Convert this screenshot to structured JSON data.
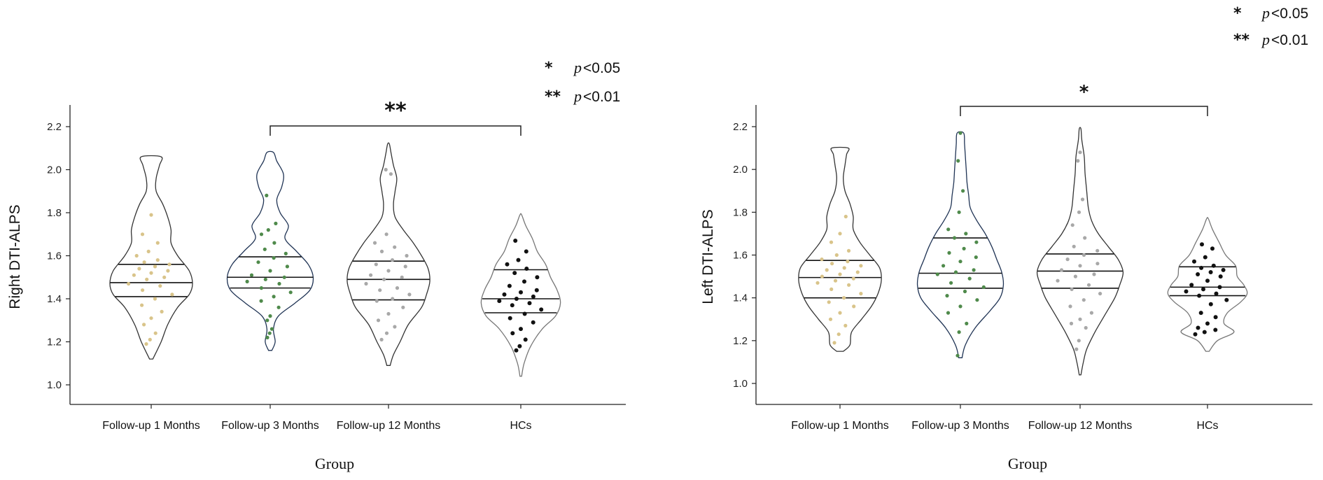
{
  "legend": {
    "entries": [
      {
        "stars": "*",
        "p": "p",
        "text": "<0.05"
      },
      {
        "stars": "**",
        "p": "p",
        "text": "<0.01"
      }
    ]
  },
  "colors": {
    "follow1": "#d9c48a",
    "follow3": "#4f8a4b",
    "follow12": "#a8a8a8",
    "hcs": "#111111",
    "outline": "#333333"
  },
  "chart_data": [
    {
      "type": "violin",
      "xlabel": "Group",
      "ylabel": "Right DTI-ALPS",
      "ylim": [
        0.95,
        2.3
      ],
      "yticks": [
        "1.0",
        "1.2",
        "1.4",
        "1.6",
        "1.8",
        "2.0",
        "2.2"
      ],
      "categories": [
        "Follow-up 1 Months",
        "Follow-up 3 Months",
        "Follow-up 12 Months",
        "HCs"
      ],
      "significance": {
        "from": 1,
        "to": 3,
        "label": "**"
      },
      "series": [
        {
          "quartiles": [
            1.41,
            1.475,
            1.56
          ],
          "min": 1.12,
          "max": 2.06,
          "profile": [
            [
              1.12,
              0.02
            ],
            [
              1.2,
              0.12
            ],
            [
              1.28,
              0.2
            ],
            [
              1.36,
              0.32
            ],
            [
              1.42,
              0.46
            ],
            [
              1.47,
              0.5
            ],
            [
              1.53,
              0.46
            ],
            [
              1.6,
              0.32
            ],
            [
              1.66,
              0.24
            ],
            [
              1.72,
              0.24
            ],
            [
              1.78,
              0.2
            ],
            [
              1.84,
              0.14
            ],
            [
              1.9,
              0.06
            ],
            [
              1.96,
              0.06
            ],
            [
              2.02,
              0.1
            ],
            [
              2.06,
              0.12
            ]
          ],
          "points": [
            1.19,
            1.21,
            1.24,
            1.28,
            1.31,
            1.34,
            1.37,
            1.4,
            1.42,
            1.44,
            1.46,
            1.47,
            1.49,
            1.5,
            1.51,
            1.52,
            1.53,
            1.54,
            1.55,
            1.56,
            1.57,
            1.58,
            1.6,
            1.62,
            1.66,
            1.7,
            1.79
          ]
        },
        {
          "quartiles": [
            1.45,
            1.5,
            1.595
          ],
          "min": 1.16,
          "max": 2.08,
          "profile": [
            [
              1.16,
              0.02
            ],
            [
              1.2,
              0.06
            ],
            [
              1.26,
              0.04
            ],
            [
              1.32,
              0.1
            ],
            [
              1.38,
              0.3
            ],
            [
              1.44,
              0.48
            ],
            [
              1.5,
              0.52
            ],
            [
              1.56,
              0.46
            ],
            [
              1.62,
              0.32
            ],
            [
              1.68,
              0.18
            ],
            [
              1.74,
              0.22
            ],
            [
              1.8,
              0.12
            ],
            [
              1.86,
              0.08
            ],
            [
              1.92,
              0.14
            ],
            [
              1.98,
              0.16
            ],
            [
              2.04,
              0.08
            ],
            [
              2.08,
              0.04
            ]
          ],
          "points": [
            1.22,
            1.24,
            1.26,
            1.3,
            1.32,
            1.36,
            1.39,
            1.41,
            1.43,
            1.45,
            1.47,
            1.48,
            1.49,
            1.5,
            1.51,
            1.53,
            1.55,
            1.57,
            1.59,
            1.61,
            1.63,
            1.66,
            1.7,
            1.72,
            1.75,
            1.88
          ]
        },
        {
          "quartiles": [
            1.395,
            1.49,
            1.575
          ],
          "min": 1.09,
          "max": 2.12,
          "profile": [
            [
              1.09,
              0.02
            ],
            [
              1.14,
              0.06
            ],
            [
              1.2,
              0.14
            ],
            [
              1.28,
              0.24
            ],
            [
              1.36,
              0.4
            ],
            [
              1.42,
              0.46
            ],
            [
              1.48,
              0.5
            ],
            [
              1.54,
              0.48
            ],
            [
              1.6,
              0.4
            ],
            [
              1.66,
              0.3
            ],
            [
              1.72,
              0.18
            ],
            [
              1.78,
              0.08
            ],
            [
              1.84,
              0.06
            ],
            [
              1.9,
              0.08
            ],
            [
              1.96,
              0.1
            ],
            [
              2.02,
              0.06
            ],
            [
              2.08,
              0.03
            ],
            [
              2.12,
              0.01
            ]
          ],
          "points": [
            1.21,
            1.24,
            1.27,
            1.3,
            1.33,
            1.36,
            1.39,
            1.4,
            1.42,
            1.44,
            1.45,
            1.47,
            1.49,
            1.5,
            1.51,
            1.53,
            1.55,
            1.56,
            1.58,
            1.6,
            1.62,
            1.64,
            1.66,
            1.7,
            1.98,
            2.0
          ]
        },
        {
          "quartiles": [
            1.335,
            1.4,
            1.535
          ],
          "min": 1.04,
          "max": 1.79,
          "profile": [
            [
              1.04,
              0.01
            ],
            [
              1.1,
              0.04
            ],
            [
              1.18,
              0.12
            ],
            [
              1.26,
              0.26
            ],
            [
              1.32,
              0.42
            ],
            [
              1.38,
              0.48
            ],
            [
              1.44,
              0.44
            ],
            [
              1.5,
              0.36
            ],
            [
              1.56,
              0.3
            ],
            [
              1.62,
              0.2
            ],
            [
              1.68,
              0.14
            ],
            [
              1.74,
              0.06
            ],
            [
              1.79,
              0.01
            ]
          ],
          "points": [
            1.16,
            1.18,
            1.21,
            1.24,
            1.26,
            1.29,
            1.31,
            1.33,
            1.35,
            1.37,
            1.38,
            1.39,
            1.4,
            1.41,
            1.42,
            1.43,
            1.44,
            1.46,
            1.48,
            1.5,
            1.52,
            1.54,
            1.56,
            1.58,
            1.62,
            1.67
          ]
        }
      ]
    },
    {
      "type": "violin",
      "xlabel": "Group",
      "ylabel": "Left DTI-ALPS",
      "ylim": [
        0.95,
        2.3
      ],
      "yticks": [
        "1.0",
        "1.2",
        "1.4",
        "1.6",
        "1.8",
        "2.0",
        "2.2"
      ],
      "categories": [
        "Follow-up 1 Months",
        "Follow-up 3 Months",
        "Follow-up 12 Months",
        "HCs"
      ],
      "significance": {
        "from": 1,
        "to": 3,
        "label": "*"
      },
      "series": [
        {
          "quartiles": [
            1.4,
            1.495,
            1.575
          ],
          "min": 1.15,
          "max": 2.1,
          "profile": [
            [
              1.15,
              0.04
            ],
            [
              1.18,
              0.12
            ],
            [
              1.24,
              0.14
            ],
            [
              1.3,
              0.26
            ],
            [
              1.36,
              0.38
            ],
            [
              1.42,
              0.46
            ],
            [
              1.48,
              0.5
            ],
            [
              1.54,
              0.48
            ],
            [
              1.6,
              0.36
            ],
            [
              1.66,
              0.24
            ],
            [
              1.72,
              0.16
            ],
            [
              1.78,
              0.16
            ],
            [
              1.84,
              0.12
            ],
            [
              1.9,
              0.06
            ],
            [
              1.96,
              0.04
            ],
            [
              2.02,
              0.06
            ],
            [
              2.07,
              0.08
            ],
            [
              2.1,
              0.1
            ]
          ],
          "points": [
            1.19,
            1.23,
            1.27,
            1.3,
            1.33,
            1.36,
            1.38,
            1.4,
            1.42,
            1.44,
            1.46,
            1.47,
            1.48,
            1.49,
            1.5,
            1.51,
            1.52,
            1.53,
            1.54,
            1.55,
            1.56,
            1.57,
            1.58,
            1.6,
            1.62,
            1.66,
            1.7,
            1.78
          ]
        },
        {
          "quartiles": [
            1.445,
            1.515,
            1.68
          ],
          "min": 1.12,
          "max": 2.17,
          "profile": [
            [
              1.12,
              0.02
            ],
            [
              1.18,
              0.06
            ],
            [
              1.26,
              0.18
            ],
            [
              1.34,
              0.36
            ],
            [
              1.4,
              0.48
            ],
            [
              1.46,
              0.52
            ],
            [
              1.52,
              0.5
            ],
            [
              1.58,
              0.44
            ],
            [
              1.64,
              0.38
            ],
            [
              1.7,
              0.3
            ],
            [
              1.76,
              0.2
            ],
            [
              1.82,
              0.12
            ],
            [
              1.88,
              0.1
            ],
            [
              1.94,
              0.08
            ],
            [
              2.0,
              0.07
            ],
            [
              2.06,
              0.06
            ],
            [
              2.12,
              0.05
            ],
            [
              2.17,
              0.04
            ]
          ],
          "points": [
            1.13,
            1.24,
            1.28,
            1.33,
            1.36,
            1.39,
            1.41,
            1.43,
            1.45,
            1.47,
            1.49,
            1.51,
            1.52,
            1.53,
            1.55,
            1.57,
            1.59,
            1.61,
            1.63,
            1.66,
            1.68,
            1.7,
            1.72,
            1.8,
            1.9,
            2.04,
            2.17
          ]
        },
        {
          "quartiles": [
            1.445,
            1.525,
            1.605
          ],
          "min": 1.04,
          "max": 2.19,
          "profile": [
            [
              1.04,
              0.01
            ],
            [
              1.1,
              0.04
            ],
            [
              1.16,
              0.08
            ],
            [
              1.24,
              0.18
            ],
            [
              1.32,
              0.3
            ],
            [
              1.4,
              0.42
            ],
            [
              1.46,
              0.48
            ],
            [
              1.52,
              0.52
            ],
            [
              1.58,
              0.46
            ],
            [
              1.64,
              0.34
            ],
            [
              1.7,
              0.22
            ],
            [
              1.76,
              0.14
            ],
            [
              1.82,
              0.1
            ],
            [
              1.9,
              0.08
            ],
            [
              1.98,
              0.06
            ],
            [
              2.06,
              0.05
            ],
            [
              2.14,
              0.02
            ],
            [
              2.19,
              0.01
            ]
          ],
          "points": [
            1.16,
            1.2,
            1.26,
            1.28,
            1.3,
            1.33,
            1.36,
            1.39,
            1.42,
            1.44,
            1.46,
            1.48,
            1.5,
            1.51,
            1.53,
            1.55,
            1.56,
            1.58,
            1.6,
            1.62,
            1.64,
            1.68,
            1.74,
            1.8,
            1.86,
            2.04,
            2.08
          ]
        },
        {
          "quartiles": [
            1.41,
            1.45,
            1.545
          ],
          "min": 1.15,
          "max": 1.77,
          "profile": [
            [
              1.15,
              0.02
            ],
            [
              1.2,
              0.12
            ],
            [
              1.24,
              0.32
            ],
            [
              1.28,
              0.2
            ],
            [
              1.33,
              0.24
            ],
            [
              1.38,
              0.4
            ],
            [
              1.42,
              0.48
            ],
            [
              1.46,
              0.44
            ],
            [
              1.5,
              0.36
            ],
            [
              1.55,
              0.34
            ],
            [
              1.6,
              0.22
            ],
            [
              1.66,
              0.14
            ],
            [
              1.72,
              0.06
            ],
            [
              1.77,
              0.01
            ]
          ],
          "points": [
            1.23,
            1.24,
            1.25,
            1.26,
            1.28,
            1.31,
            1.33,
            1.37,
            1.39,
            1.41,
            1.42,
            1.43,
            1.44,
            1.45,
            1.46,
            1.48,
            1.5,
            1.51,
            1.52,
            1.53,
            1.54,
            1.55,
            1.57,
            1.59,
            1.63,
            1.65
          ]
        }
      ]
    }
  ]
}
